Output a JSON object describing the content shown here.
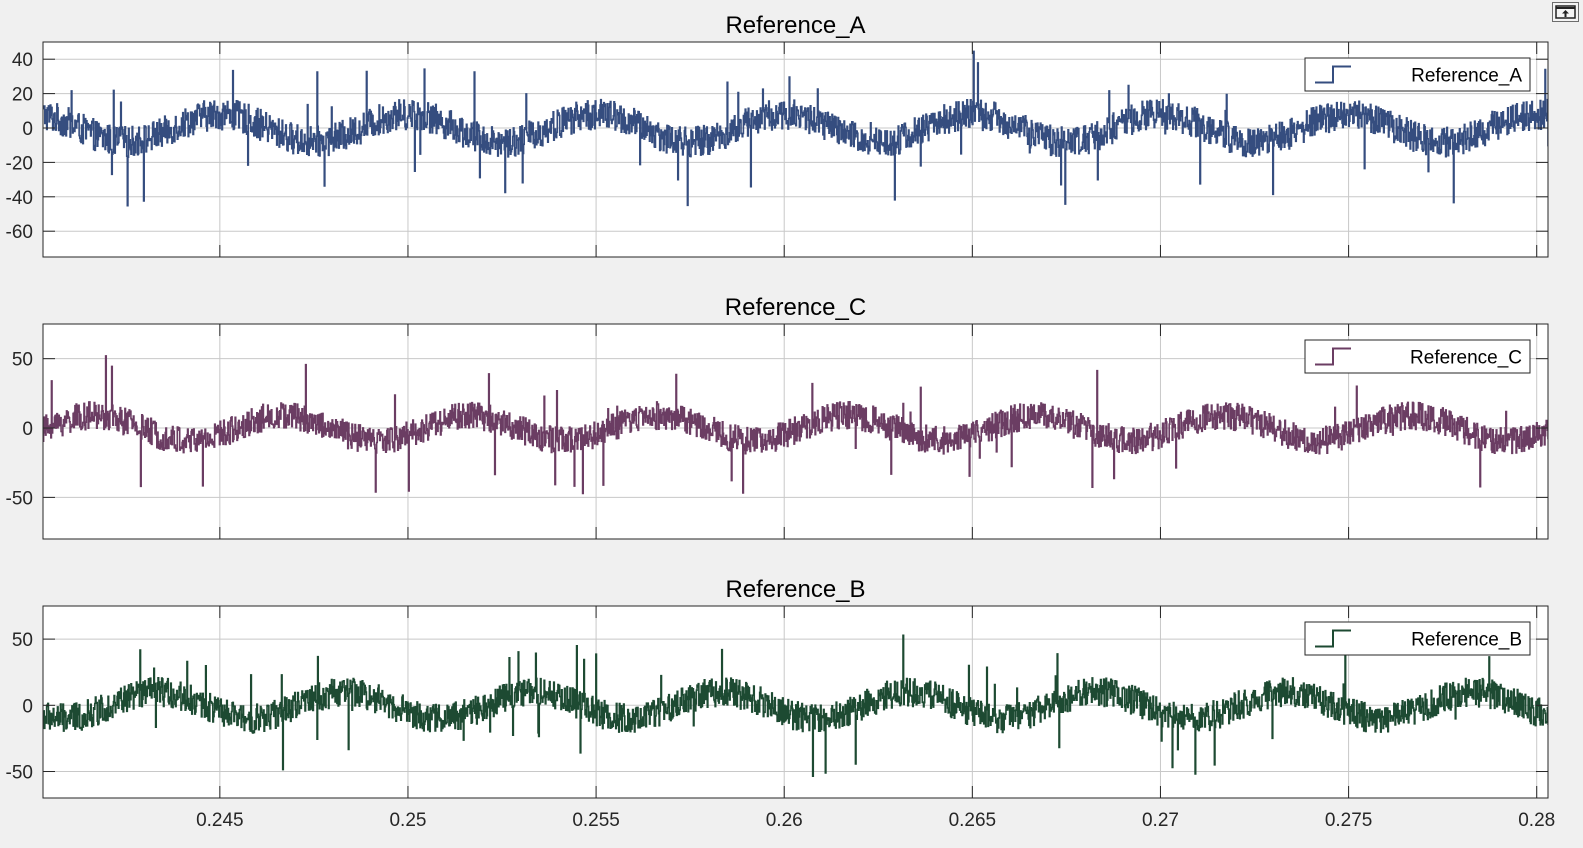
{
  "toolbar": {
    "undock_icon": "undock-icon"
  },
  "chart_data": [
    {
      "type": "line",
      "title": "Reference_A",
      "xlabel": "",
      "ylabel": "",
      "xlim": [
        0.2403,
        0.2803
      ],
      "ylim": [
        -75,
        50
      ],
      "xticks": [
        0.245,
        0.25,
        0.255,
        0.26,
        0.265,
        0.27,
        0.275,
        0.28
      ],
      "yticks": [
        -60,
        -40,
        -20,
        0,
        20,
        40
      ],
      "ytick_labels": [
        "-60",
        "-40",
        "-20",
        "0",
        "20",
        "40"
      ],
      "show_x_tick_labels": false,
      "grid": true,
      "legend": "top-right",
      "line_style": "stairs",
      "series": [
        {
          "name": "Reference_A",
          "color": "#354d7f",
          "signal": {
            "sine_amplitude": 8,
            "sine_frequency_hz": 200,
            "sine_phase_deg": 90,
            "noise_band": 9,
            "spike_max": 33,
            "spike_rate": 0.02,
            "sample_count": 2500
          }
        }
      ]
    },
    {
      "type": "line",
      "title": "Reference_C",
      "xlabel": "",
      "ylabel": "",
      "xlim": [
        0.2403,
        0.2803
      ],
      "ylim": [
        -80,
        75
      ],
      "xticks": [
        0.245,
        0.25,
        0.255,
        0.26,
        0.265,
        0.27,
        0.275,
        0.28
      ],
      "yticks": [
        -50,
        0,
        50
      ],
      "ytick_labels": [
        "-50",
        "0",
        "50"
      ],
      "show_x_tick_labels": false,
      "grid": true,
      "legend": "top-right",
      "line_style": "stairs",
      "series": [
        {
          "name": "Reference_C",
          "color": "#6b3d63",
          "signal": {
            "sine_amplitude": 9,
            "sine_frequency_hz": 200,
            "sine_phase_deg": -30,
            "noise_band": 10,
            "spike_max": 42,
            "spike_rate": 0.02,
            "sample_count": 2500
          }
        }
      ]
    },
    {
      "type": "line",
      "title": "Reference_B",
      "xlabel": "",
      "ylabel": "",
      "xlim": [
        0.2403,
        0.2803
      ],
      "ylim": [
        -70,
        75
      ],
      "xticks": [
        0.245,
        0.25,
        0.255,
        0.26,
        0.265,
        0.27,
        0.275,
        0.28
      ],
      "xtick_labels": [
        "0.245",
        "0.25",
        "0.255",
        "0.26",
        "0.265",
        "0.27",
        "0.275",
        "0.28"
      ],
      "yticks": [
        -50,
        0,
        50
      ],
      "ytick_labels": [
        "-50",
        "0",
        "50"
      ],
      "show_x_tick_labels": true,
      "grid": true,
      "legend": "top-right",
      "line_style": "stairs",
      "series": [
        {
          "name": "Reference_B",
          "color": "#1d4a32",
          "signal": {
            "sine_amplitude": 10,
            "sine_frequency_hz": 200,
            "sine_phase_deg": 210,
            "noise_band": 11,
            "spike_max": 38,
            "spike_rate": 0.02,
            "sample_count": 2500
          }
        }
      ]
    }
  ]
}
